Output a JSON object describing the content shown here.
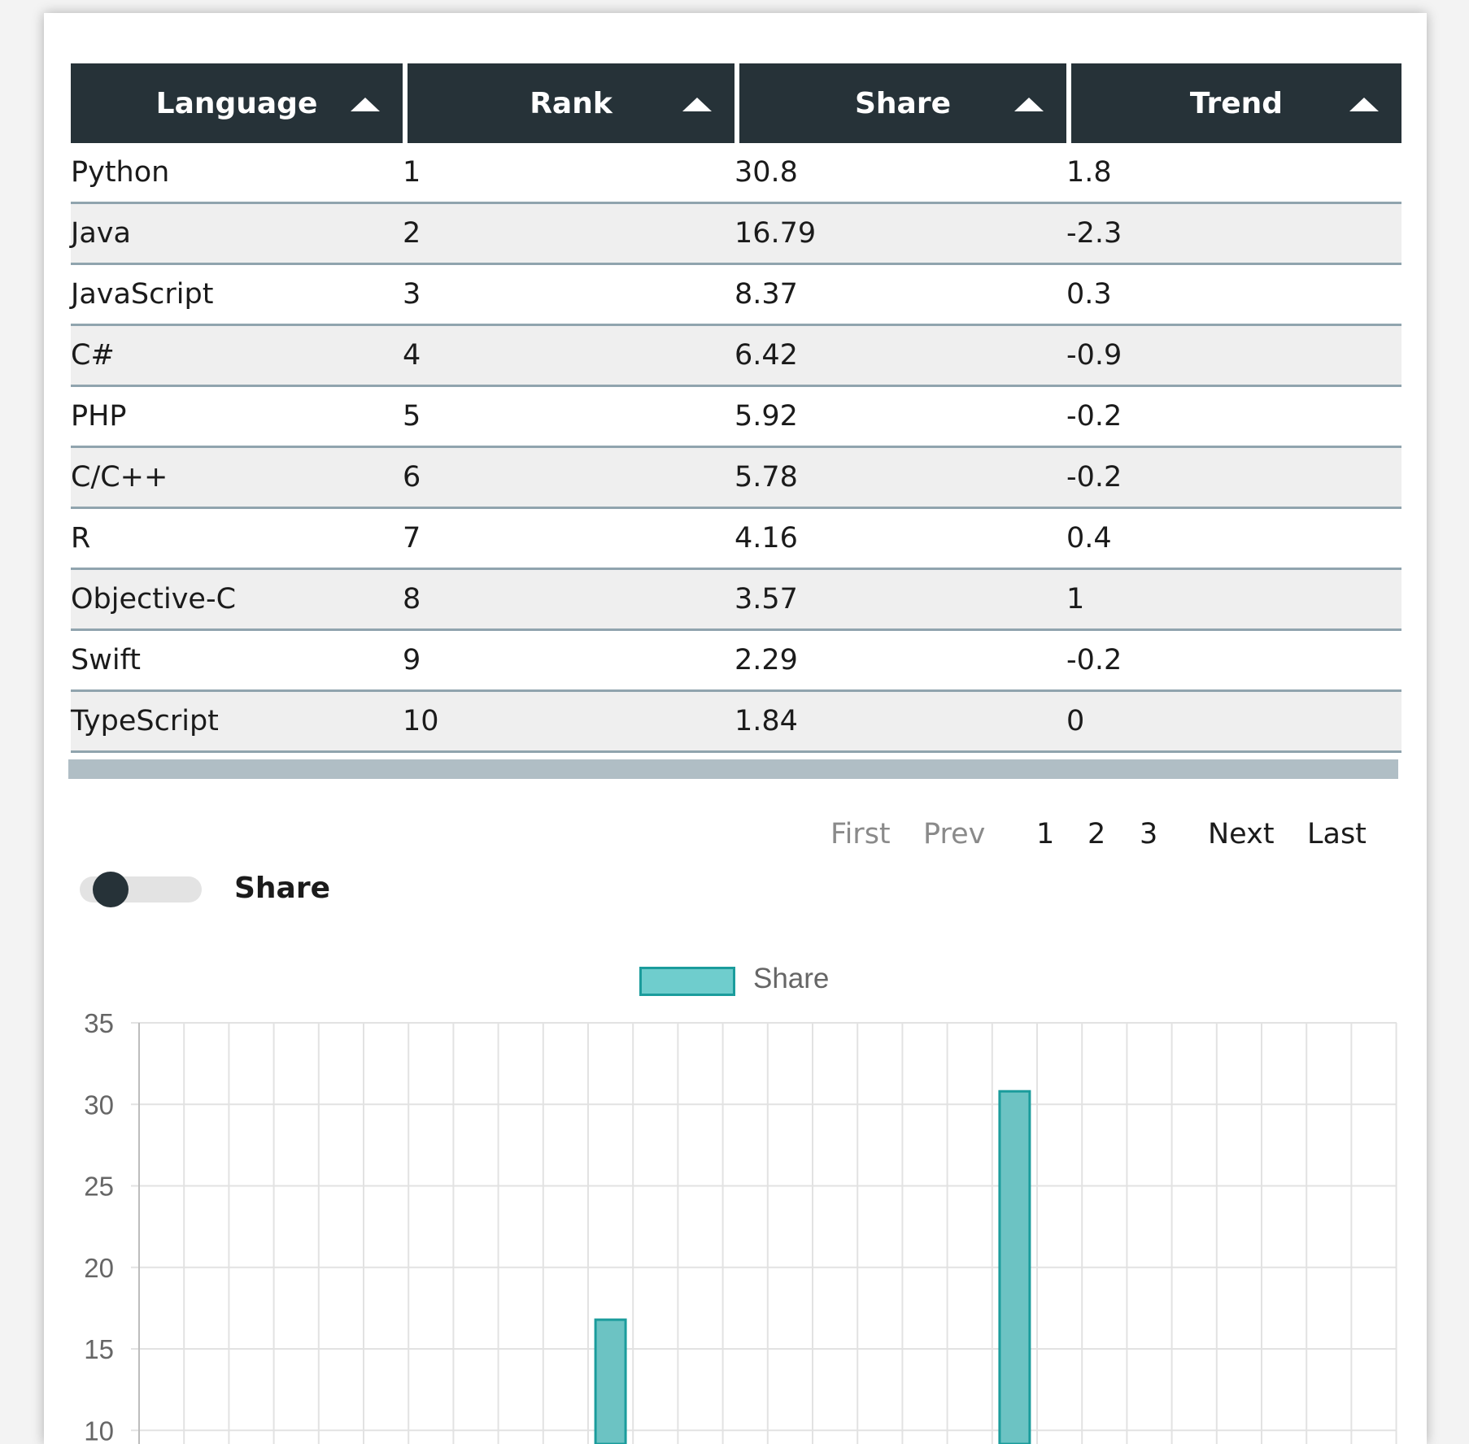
{
  "table": {
    "columns": [
      "Language",
      "Rank",
      "Share",
      "Trend"
    ],
    "rows": [
      [
        "Python",
        "1",
        "30.8",
        "1.8"
      ],
      [
        "Java",
        "2",
        "16.79",
        "-2.3"
      ],
      [
        "JavaScript",
        "3",
        "8.37",
        "0.3"
      ],
      [
        "C#",
        "4",
        "6.42",
        "-0.9"
      ],
      [
        "PHP",
        "5",
        "5.92",
        "-0.2"
      ],
      [
        "C/C++",
        "6",
        "5.78",
        "-0.2"
      ],
      [
        "R",
        "7",
        "4.16",
        "0.4"
      ],
      [
        "Objective-C",
        "8",
        "3.57",
        "1"
      ],
      [
        "Swift",
        "9",
        "2.29",
        "-0.2"
      ],
      [
        "TypeScript",
        "10",
        "1.84",
        "0"
      ]
    ]
  },
  "pagination": {
    "first": "First",
    "prev": "Prev",
    "pages": [
      "1",
      "2",
      "3"
    ],
    "next": "Next",
    "last": "Last"
  },
  "toggle": {
    "label": "Share",
    "on": false
  },
  "colors": {
    "header_bg": "#263238",
    "bar_fill": "#6cc3c3",
    "bar_stroke": "#1b9c9c"
  },
  "chart_data": {
    "type": "bar",
    "series": [
      {
        "name": "Share",
        "points": [
          {
            "x_index": 10.5,
            "value": 16.79
          },
          {
            "x_index": 19.5,
            "value": 30.8
          }
        ]
      }
    ],
    "ylim": [
      10,
      35
    ],
    "yticks": [
      "10",
      "15",
      "20",
      "25",
      "30",
      "35"
    ],
    "grid": true,
    "legend": "top"
  }
}
